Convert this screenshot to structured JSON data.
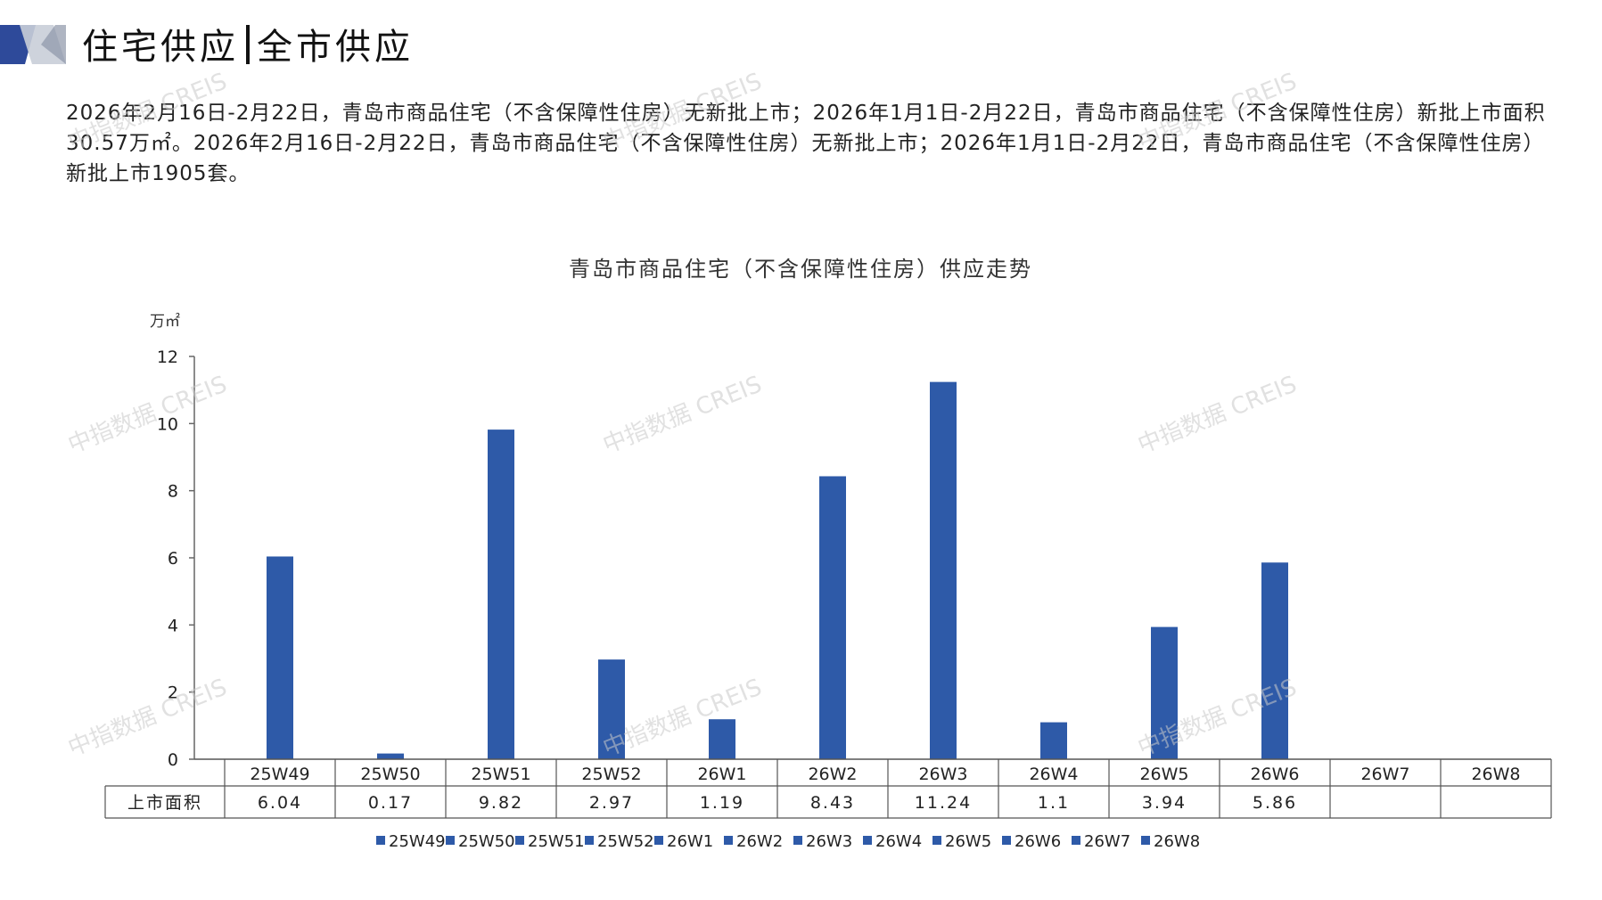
{
  "header": {
    "title_left": "住宅供应",
    "title_right": "全市供应"
  },
  "summary": "2026年2月16日-2月22日，青岛市商品住宅（不含保障性住房）无新批上市；2026年1月1日-2月22日，青岛市商品住宅（不含保障性住房）新批上市面积30.57万㎡。2026年2月16日-2月22日，青岛市商品住宅（不含保障性住房）无新批上市；2026年1月1日-2月22日，青岛市商品住宅（不含保障性住房）新批上市1905套。",
  "watermark": "中指数据 CREIS",
  "colors": {
    "bar": "#2e5aa8",
    "logo_dark": "#2e4a9a",
    "logo_light": "#c9ced8",
    "axis": "#666666",
    "table_border": "#555555"
  },
  "chart_data": {
    "type": "bar",
    "title": "青岛市商品住宅（不含保障性住房）供应走势",
    "ylabel": "万㎡",
    "ylim": [
      0,
      12
    ],
    "yticks": [
      0,
      2,
      4,
      6,
      8,
      10,
      12
    ],
    "categories": [
      "25W49",
      "25W50",
      "25W51",
      "25W52",
      "26W1",
      "26W2",
      "26W3",
      "26W4",
      "26W5",
      "26W6",
      "26W7",
      "26W8"
    ],
    "series": [
      {
        "name": "上市面积",
        "values": [
          6.04,
          0.17,
          9.82,
          2.97,
          1.19,
          8.43,
          11.24,
          1.1,
          3.94,
          5.86,
          null,
          null
        ]
      }
    ],
    "table_labels": [
      "6.04",
      "0.17",
      "9.82",
      "2.97",
      "1.19",
      "8.43",
      "11.24",
      "1.1",
      "3.94",
      "5.86",
      "",
      ""
    ],
    "legend": [
      "25W49",
      "25W50",
      "25W51",
      "25W52",
      "26W1",
      "26W2",
      "26W3",
      "26W4",
      "26W5",
      "26W6",
      "26W7",
      "26W8"
    ],
    "legend_position": "bottom",
    "grid": false
  }
}
